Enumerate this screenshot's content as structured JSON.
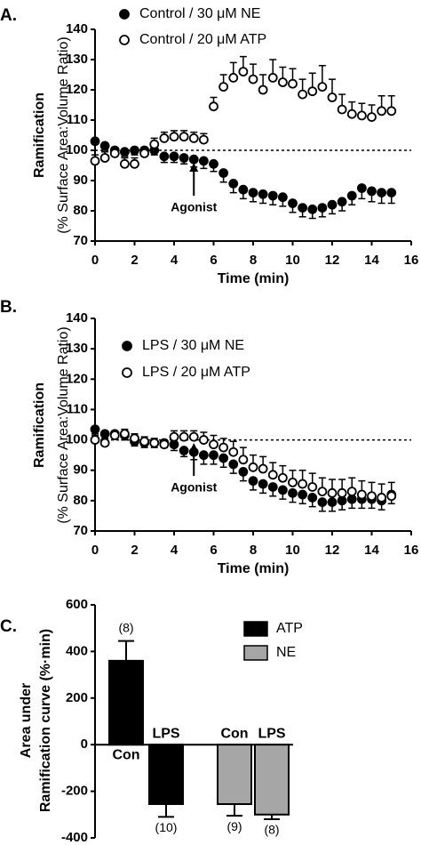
{
  "chart_data": [
    {
      "type": "scatter",
      "panel": "A.",
      "ylabel": [
        "Ramification",
        "(% Surface Area:Volume Ratio)"
      ],
      "xlabel": "Time (min)",
      "xlim": [
        0,
        16
      ],
      "xticks": [
        0,
        2,
        4,
        6,
        8,
        10,
        12,
        14,
        16
      ],
      "ylim": [
        70,
        140
      ],
      "yticks": [
        70,
        80,
        90,
        100,
        110,
        120,
        130,
        140
      ],
      "reference_line": 100,
      "annotation": {
        "text": "Agonist",
        "x": 5
      },
      "x": [
        0,
        0.5,
        1,
        1.5,
        2,
        2.5,
        3,
        3.5,
        4,
        4.5,
        5,
        5.5,
        6,
        6.5,
        7,
        7.5,
        8,
        8.5,
        9,
        9.5,
        10,
        10.5,
        11,
        11.5,
        12,
        12.5,
        13,
        13.5,
        14,
        14.5,
        15
      ],
      "series": [
        {
          "name": "Control / 30 μM NE",
          "marker": "filled",
          "color": "#000",
          "error_side": "down",
          "values": [
            103,
            101.5,
            100,
            99.5,
            100,
            100,
            100,
            98,
            98,
            97.5,
            97,
            96.5,
            95.5,
            92.5,
            89,
            87,
            86,
            85.5,
            85,
            84.5,
            82.5,
            81,
            80.5,
            81,
            82,
            83,
            85,
            87.5,
            86.5,
            86,
            86
          ],
          "errors": [
            1,
            1.5,
            1.5,
            1.5,
            1.5,
            1.5,
            1.5,
            2,
            2,
            2,
            2.5,
            2.5,
            2.5,
            3,
            3,
            3,
            3,
            3,
            3,
            3,
            3,
            3,
            3,
            3,
            3,
            3,
            3,
            3.5,
            3.5,
            3.5,
            3.5
          ]
        },
        {
          "name": "Control / 20 μM ATP",
          "marker": "open",
          "color": "#000",
          "error_side": "up",
          "values": [
            96.5,
            97.5,
            99,
            95.5,
            95.5,
            99,
            102,
            104,
            104.5,
            104.5,
            104,
            103.5,
            114.5,
            121,
            124,
            126,
            123.5,
            120,
            124,
            122.5,
            122,
            118.5,
            119.5,
            121,
            117.5,
            113.5,
            112,
            111.5,
            111,
            113,
            113
          ],
          "errors": [
            2,
            2,
            2,
            2,
            2,
            2,
            2,
            2,
            2,
            2,
            2,
            2,
            3,
            4,
            5,
            5,
            5,
            5,
            6,
            5,
            5,
            5,
            6,
            7,
            6,
            5,
            4,
            4,
            4,
            5,
            5
          ]
        }
      ]
    },
    {
      "type": "scatter",
      "panel": "B.",
      "ylabel": [
        "Ramification",
        "(% Surface Area:Volume Ratio)"
      ],
      "xlabel": "Time (min)",
      "xlim": [
        0,
        16
      ],
      "xticks": [
        0,
        2,
        4,
        6,
        8,
        10,
        12,
        14,
        16
      ],
      "ylim": [
        70,
        140
      ],
      "yticks": [
        70,
        80,
        90,
        100,
        110,
        120,
        130,
        140
      ],
      "reference_line": 100,
      "annotation": {
        "text": "Agonist",
        "x": 5
      },
      "x": [
        0,
        0.5,
        1,
        1.5,
        2,
        2.5,
        3,
        3.5,
        4,
        4.5,
        5,
        5.5,
        6,
        6.5,
        7,
        7.5,
        8,
        8.5,
        9,
        9.5,
        10,
        10.5,
        11,
        11.5,
        12,
        12.5,
        13,
        13.5,
        14,
        14.5,
        15
      ],
      "series": [
        {
          "name": "LPS / 30 μM NE",
          "marker": "filled",
          "color": "#000",
          "error_side": "down",
          "values": [
            103.5,
            102,
            102,
            101.5,
            99.5,
            99,
            99,
            99,
            98.5,
            96.5,
            96,
            95,
            95,
            94,
            92,
            89.5,
            86.5,
            85.5,
            84.5,
            83.5,
            82.5,
            82,
            81,
            79.5,
            79.5,
            80,
            80.5,
            80.5,
            80.5,
            80,
            82
          ],
          "errors": [
            1.5,
            1.5,
            1.5,
            1.5,
            1.5,
            1.5,
            1.5,
            1.5,
            2,
            2,
            2.5,
            3,
            3,
            3,
            3,
            3,
            3,
            3,
            3,
            3,
            3,
            3,
            3,
            3,
            3,
            3,
            3,
            3,
            3,
            3,
            3
          ]
        },
        {
          "name": "LPS / 20 μM ATP",
          "marker": "open",
          "color": "#000",
          "error_side": "up",
          "values": [
            100,
            99,
            101.5,
            102,
            100.5,
            99.5,
            99,
            98.5,
            101,
            101,
            101,
            100,
            98.5,
            97.5,
            96,
            93.5,
            91,
            90.5,
            88.5,
            87.5,
            86,
            85.5,
            84.5,
            83,
            82.5,
            82.5,
            83,
            82,
            81.5,
            81,
            81.5
          ],
          "errors": [
            1.5,
            1.5,
            1.5,
            1.5,
            1.5,
            1.5,
            1.5,
            1.5,
            2,
            2,
            2,
            2.5,
            3,
            3,
            3.5,
            4,
            4,
            4,
            4,
            4,
            4,
            4.5,
            4.5,
            4.5,
            4.5,
            4.5,
            4.5,
            4.5,
            4.5,
            4.5,
            4.5
          ]
        }
      ]
    },
    {
      "type": "bar",
      "panel": "C.",
      "ylabel": [
        "Area under",
        "Ramification curve (%·min)"
      ],
      "ylim": [
        -400,
        600
      ],
      "yticks": [
        -400,
        -200,
        0,
        200,
        400,
        600
      ],
      "categories": [
        "Con",
        "LPS",
        "Con",
        "LPS"
      ],
      "series": [
        {
          "name": "ATP",
          "color": "#000000",
          "values": [
            360,
            -255,
            null,
            null
          ],
          "errors": [
            85,
            55,
            null,
            null
          ],
          "n_labels": [
            "(8)",
            "(10)",
            null,
            null
          ]
        },
        {
          "name": "NE",
          "color": "#a6a6a6",
          "values": [
            null,
            null,
            -255,
            -300
          ],
          "errors": [
            null,
            null,
            50,
            20
          ],
          "n_labels": [
            null,
            null,
            "(9)",
            "(8)"
          ]
        }
      ]
    }
  ]
}
